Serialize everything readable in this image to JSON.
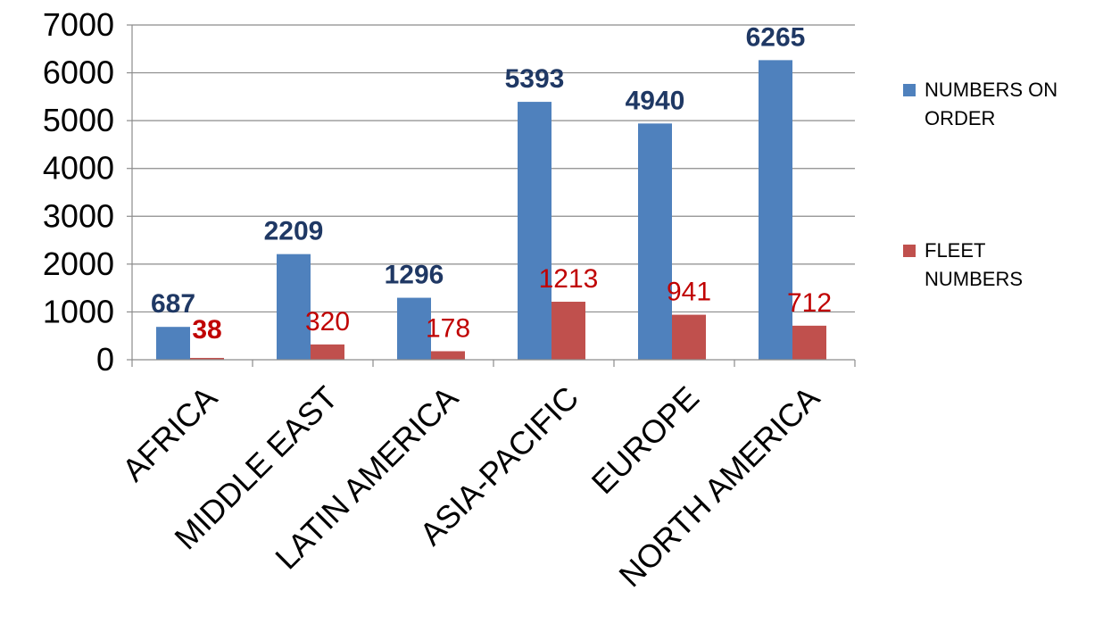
{
  "chart_data": {
    "type": "bar",
    "title": "",
    "xlabel": "",
    "ylabel": "",
    "categories": [
      "AFRICA",
      "MIDDLE EAST",
      "LATIN AMERICA",
      "ASIA-PACIFIC",
      "EUROPE",
      "NORTH AMERICA"
    ],
    "series": [
      {
        "name": "NUMBERS ON ORDER",
        "legend_lines": [
          "NUMBERS ON",
          "ORDER"
        ],
        "values": [
          687,
          2209,
          1296,
          5393,
          4940,
          6265
        ],
        "color": "#4f81bd",
        "label_color": "#1f3864"
      },
      {
        "name": "FLEET NUMBERS",
        "legend_lines": [
          "FLEET",
          "NUMBERS"
        ],
        "values": [
          38,
          320,
          178,
          1213,
          941,
          712
        ],
        "color": "#c0504d",
        "label_color": "#c00000"
      }
    ],
    "ylim": [
      0,
      7000
    ],
    "yticks": [
      0,
      1000,
      2000,
      3000,
      4000,
      5000,
      6000,
      7000
    ],
    "grid": true,
    "legend_position": "right"
  }
}
